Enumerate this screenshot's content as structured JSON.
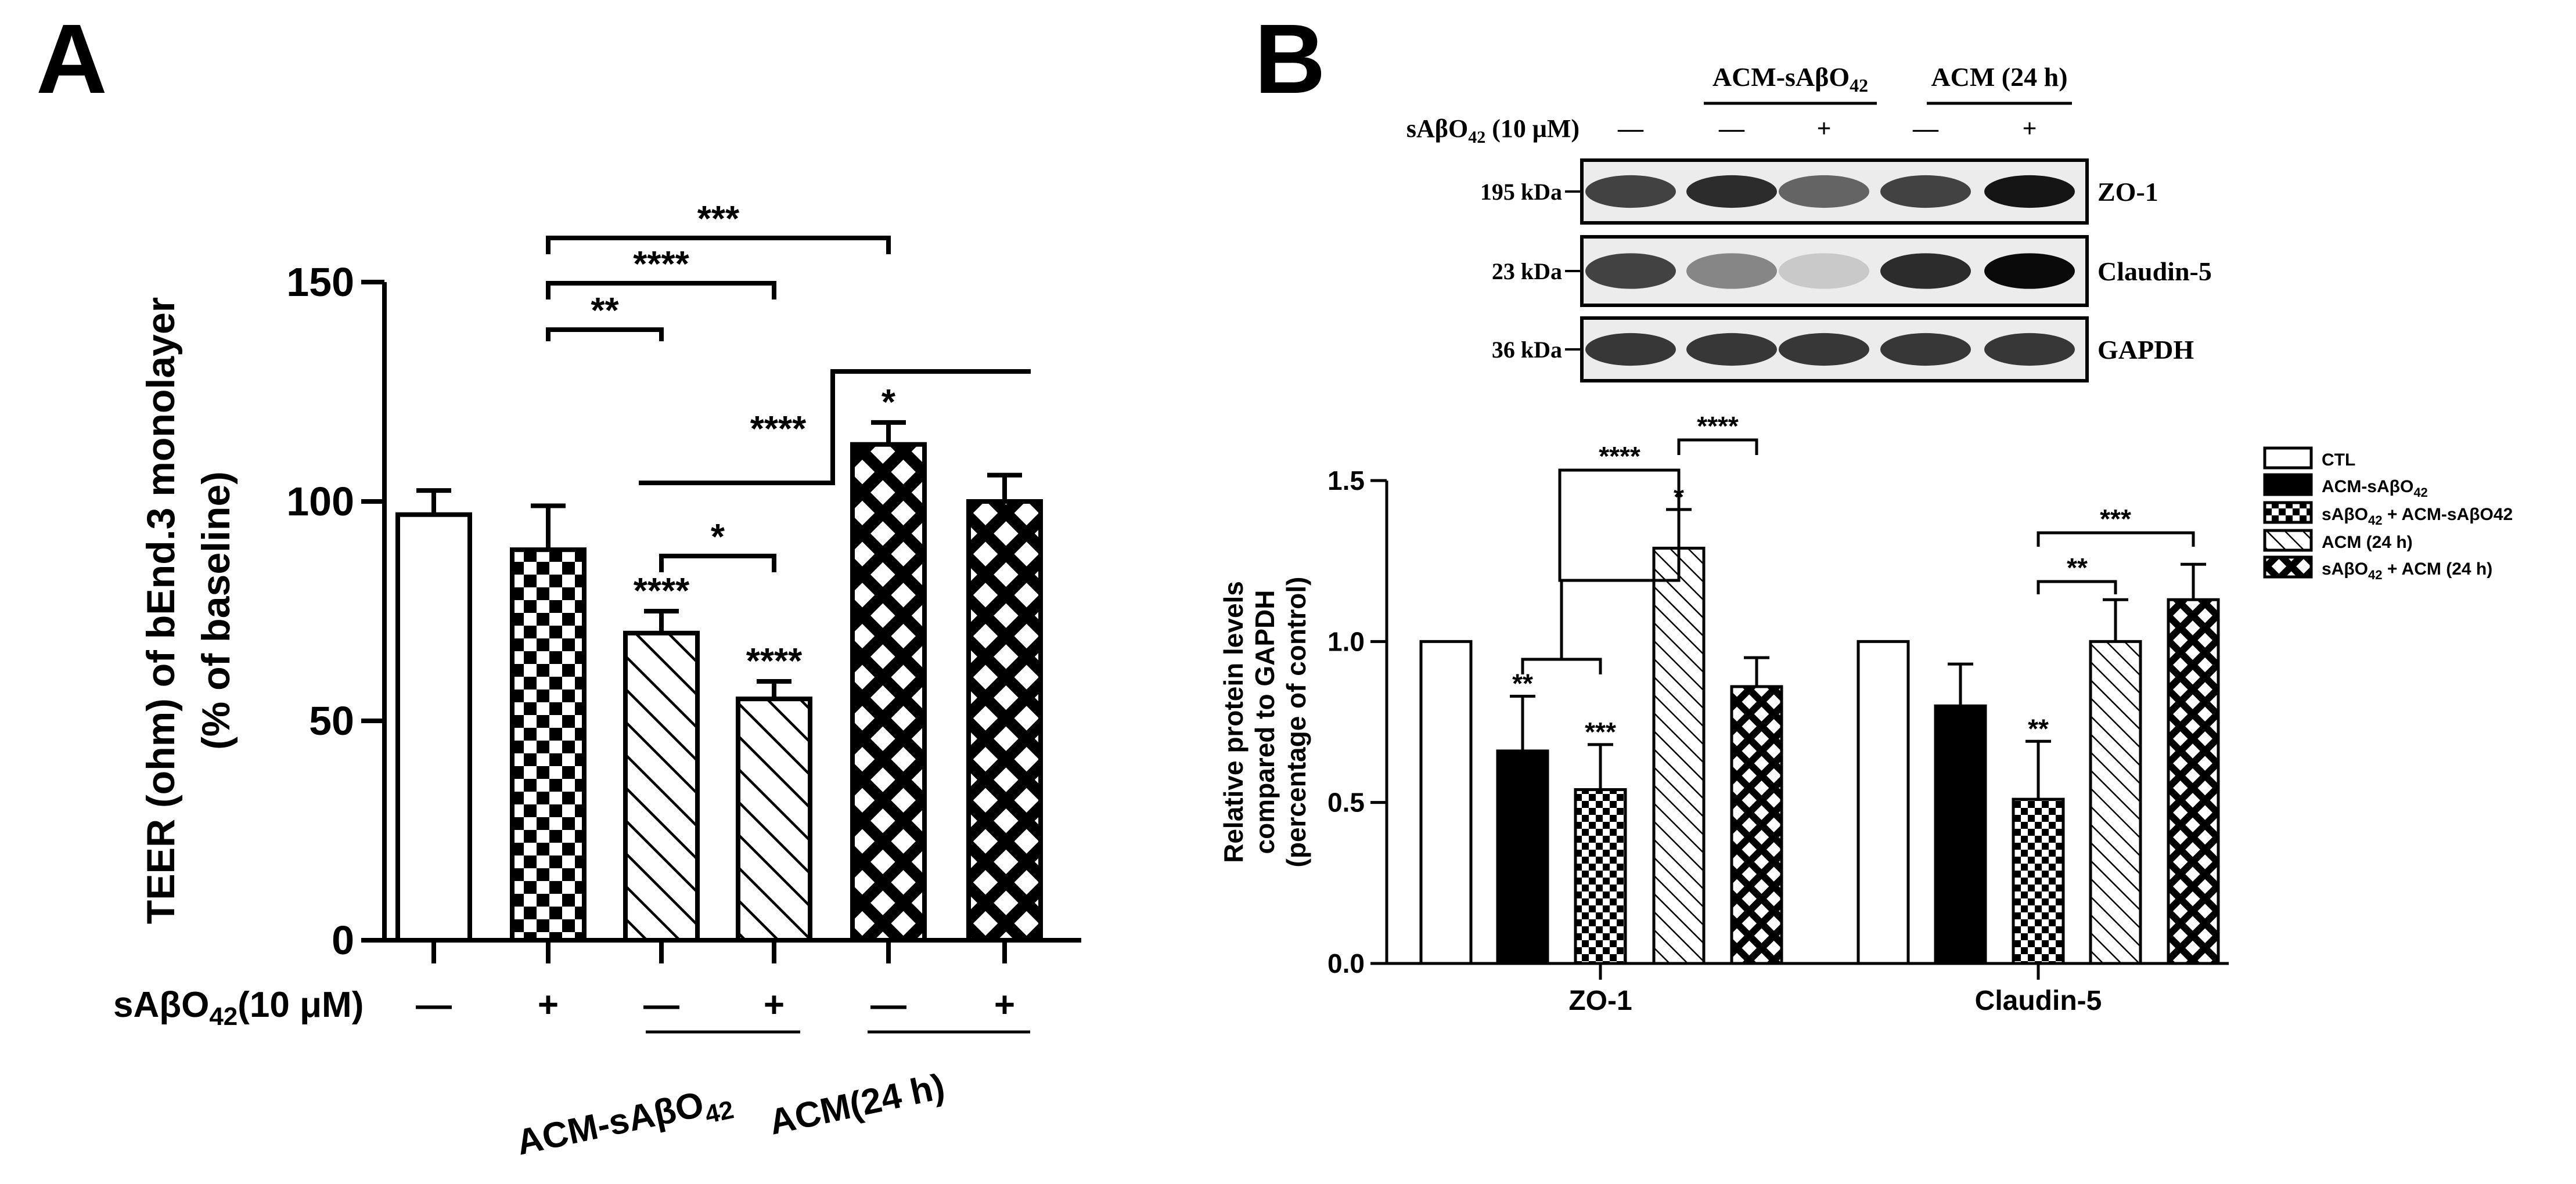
{
  "panels": {
    "a_label": "A",
    "b_label": "B"
  },
  "chart_data": [
    {
      "id": "A",
      "type": "bar",
      "ylabel_line1": "TEER (ohm) of bEnd.3 monolayer",
      "ylabel_line2": "(% of baseline)",
      "ylim": [
        0,
        150
      ],
      "yticks": [
        "0",
        "50",
        "100",
        "150"
      ],
      "treatment_label": "sAβO",
      "treatment_sub": "42",
      "treatment_suffix": "(10 μM)",
      "signs": [
        "—",
        "+",
        "—",
        "+",
        "—",
        "+"
      ],
      "groups": [
        {
          "label": "ACM-sAβO",
          "sub": "42"
        },
        {
          "label": "ACM(24 h)",
          "sub": ""
        }
      ],
      "values": [
        97,
        89,
        70,
        55,
        113,
        100
      ],
      "errors": [
        5.5,
        10,
        5,
        4,
        5,
        6
      ],
      "patterns": [
        "white",
        "checker",
        "diag",
        "diag",
        "crosshatch",
        "crosshatch"
      ],
      "bar_stars": [
        "",
        "",
        "****",
        "****",
        "*",
        ""
      ],
      "brackets": [
        {
          "from": 1,
          "to": 4,
          "text": "***"
        },
        {
          "from": 1,
          "to": 3,
          "text": "****"
        },
        {
          "from": 1,
          "to": 2,
          "text": "**"
        },
        {
          "from": 2,
          "to": 3,
          "text": "*"
        },
        {
          "from": "2-3",
          "to": "4-5",
          "text": "****"
        }
      ]
    },
    {
      "id": "B-blot",
      "type": "table",
      "header_group1": {
        "label": "ACM-sAβO",
        "sub": "42"
      },
      "header_group2": {
        "label": "ACM (24 h)",
        "sub": ""
      },
      "treatment_label": "sAβO",
      "treatment_sub": "42",
      "treatment_suffix": " (10 μM)",
      "signs": [
        "—",
        "—",
        "+",
        "—",
        "+"
      ],
      "rows": [
        {
          "kda": "195 kDa",
          "protein": "ZO-1",
          "intensity": [
            0.75,
            0.85,
            0.6,
            0.75,
            0.95
          ]
        },
        {
          "kda": "23 kDa",
          "protein": "Claudin-5",
          "intensity": [
            0.75,
            0.45,
            0.15,
            0.85,
            1.0
          ]
        },
        {
          "kda": "36 kDa",
          "protein": "GAPDH",
          "intensity": [
            0.8,
            0.8,
            0.8,
            0.8,
            0.8
          ]
        }
      ]
    },
    {
      "id": "B",
      "type": "bar",
      "ylabel_line1": "Relative protein levels",
      "ylabel_line2": "compared to GAPDH",
      "ylabel_line3": "(percentage of control)",
      "ylim": [
        0,
        1.5
      ],
      "yticks": [
        "0.0",
        "0.5",
        "1.0",
        "1.5"
      ],
      "categories": [
        "ZO-1",
        "Claudin-5"
      ],
      "legend": [
        {
          "label": "CTL",
          "sub": "",
          "suffix": "",
          "pattern": "white"
        },
        {
          "label": "ACM-sAβO",
          "sub": "42",
          "suffix": "",
          "pattern": "black"
        },
        {
          "label": "sAβO",
          "sub": "42",
          "suffix": " + ACM-sAβO42",
          "pattern": "checker"
        },
        {
          "label": "ACM (24 h)",
          "sub": "",
          "suffix": "",
          "pattern": "diag"
        },
        {
          "label": "sAβO",
          "sub": "42",
          "suffix": " + ACM (24 h)",
          "pattern": "crosshatch"
        }
      ],
      "series": [
        {
          "values": [
            1.0,
            1.0
          ],
          "errors": [
            0,
            0
          ]
        },
        {
          "values": [
            0.66,
            0.8
          ],
          "errors": [
            0.17,
            0.13
          ]
        },
        {
          "values": [
            0.54,
            0.51
          ],
          "errors": [
            0.14,
            0.18
          ]
        },
        {
          "values": [
            1.29,
            1.0
          ],
          "errors": [
            0.12,
            0.13
          ]
        },
        {
          "values": [
            0.86,
            1.13
          ],
          "errors": [
            0.09,
            0.11
          ]
        }
      ],
      "bar_stars": [
        [
          "",
          "**",
          "***",
          "*",
          ""
        ],
        [
          "",
          "",
          "**",
          "",
          ""
        ]
      ],
      "brackets": [
        {
          "cat": 0,
          "from": "1-2",
          "to": 3,
          "text": "****"
        },
        {
          "cat": 0,
          "from": 3,
          "to": 4,
          "text": "****"
        },
        {
          "cat": 1,
          "from": 2,
          "to": 3,
          "text": "**"
        },
        {
          "cat": 1,
          "from": 2,
          "to": 4,
          "text": "***"
        }
      ]
    }
  ]
}
